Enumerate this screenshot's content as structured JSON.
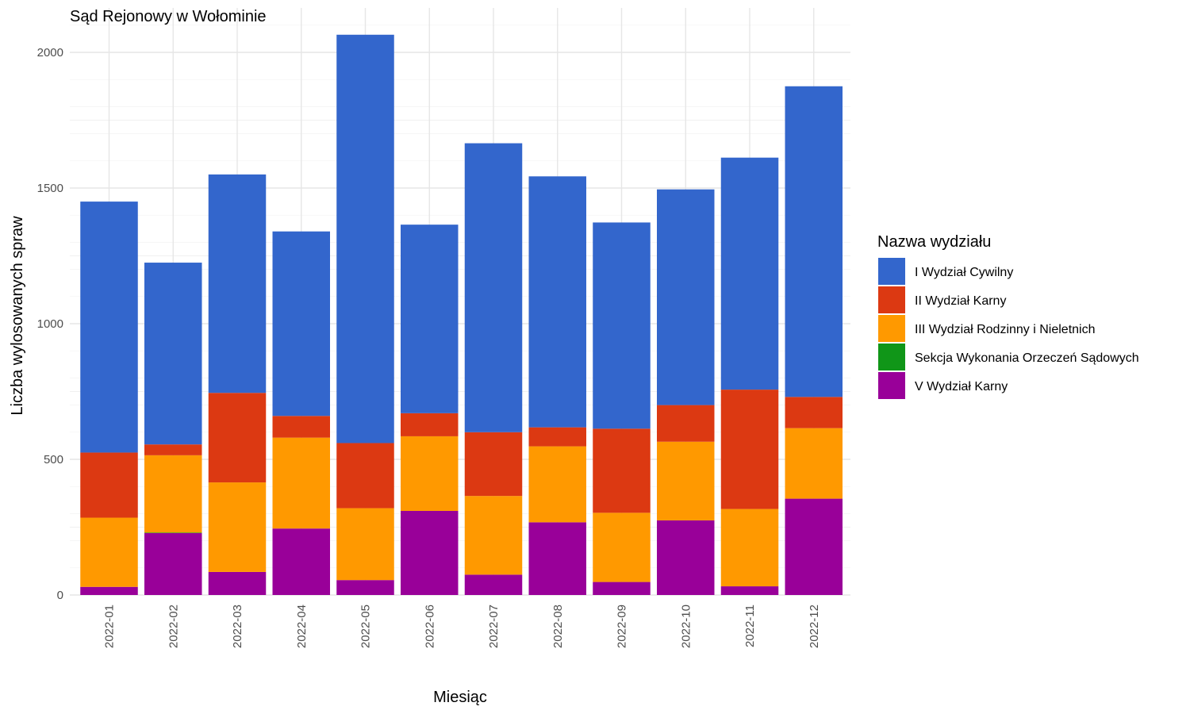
{
  "chart_data": {
    "type": "bar",
    "stacked": true,
    "title": "Sąd Rejonowy w Wołominie",
    "xlabel": "Miesiąc",
    "ylabel": "Liczba wylosowanych spraw",
    "ylim": [
      0,
      2100
    ],
    "yticks": [
      0,
      500,
      1000,
      1500,
      2000
    ],
    "grid": true,
    "legend_title": "Nazwa wydziału",
    "legend_position": "right",
    "categories": [
      "2022-01",
      "2022-02",
      "2022-03",
      "2022-04",
      "2022-05",
      "2022-06",
      "2022-07",
      "2022-08",
      "2022-09",
      "2022-10",
      "2022-11",
      "2022-12"
    ],
    "series": [
      {
        "name": "I Wydział Cywilny",
        "color": "#3366CC",
        "values": [
          925,
          670,
          805,
          680,
          1505,
          695,
          1065,
          925,
          760,
          795,
          855,
          1145
        ]
      },
      {
        "name": "II Wydział Karny",
        "color": "#DC3912",
        "values": [
          240,
          40,
          330,
          80,
          240,
          85,
          235,
          70,
          310,
          135,
          440,
          115
        ]
      },
      {
        "name": "III Wydział Rodzinny i Nieletnich",
        "color": "#FF9900",
        "values": [
          255,
          285,
          330,
          335,
          265,
          275,
          290,
          280,
          255,
          290,
          285,
          260
        ]
      },
      {
        "name": "Sekcja Wykonania Orzeczeń Sądowych",
        "color": "#109618",
        "values": [
          0,
          2,
          0,
          0,
          0,
          0,
          0,
          0,
          0,
          0,
          0,
          0
        ]
      },
      {
        "name": "V Wydział Karny",
        "color": "#990099",
        "values": [
          30,
          228,
          85,
          245,
          55,
          310,
          75,
          268,
          48,
          275,
          32,
          355
        ]
      }
    ]
  }
}
